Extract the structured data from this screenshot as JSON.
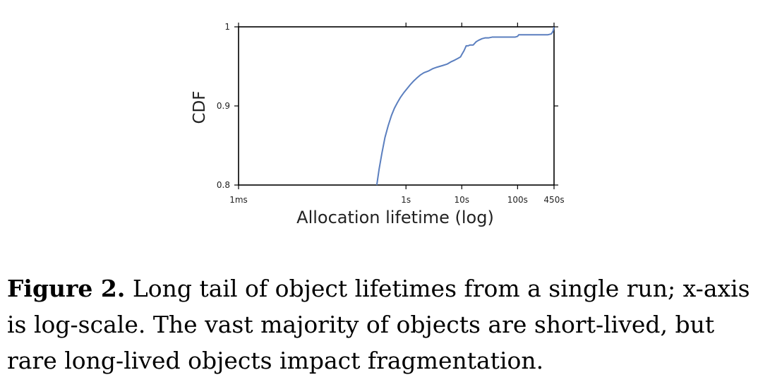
{
  "chart_data": {
    "type": "line",
    "xscale": "log",
    "xlabel": "Allocation lifetime (log)",
    "ylabel": "CDF",
    "xlim": [
      0.001,
      450
    ],
    "ylim": [
      0.8,
      1.0
    ],
    "xticks": [
      {
        "value": 0.001,
        "label": "1ms"
      },
      {
        "value": 1,
        "label": "1s"
      },
      {
        "value": 10,
        "label": "10s"
      },
      {
        "value": 100,
        "label": "100s"
      },
      {
        "value": 450,
        "label": "450s"
      }
    ],
    "yticks": [
      {
        "value": 0.8,
        "label": "0.8"
      },
      {
        "value": 0.9,
        "label": "0.9"
      },
      {
        "value": 1.0,
        "label": "1"
      }
    ],
    "series": [
      {
        "color": "#5b7fbf",
        "x": [
          0.3,
          0.33,
          0.37,
          0.42,
          0.48,
          0.55,
          0.62,
          0.7,
          0.8,
          0.92,
          1.05,
          1.2,
          1.35,
          1.55,
          1.8,
          2.1,
          2.5,
          3.0,
          3.6,
          4.5,
          5.5,
          6.5,
          7.5,
          8.5,
          9.5,
          10,
          11,
          12,
          13,
          14,
          15,
          16,
          18,
          20,
          23,
          26,
          30,
          35,
          40,
          50,
          60,
          75,
          90,
          100,
          105,
          130,
          160,
          200,
          250,
          300,
          350,
          400,
          420,
          435,
          445,
          450
        ],
        "y": [
          0.8,
          0.82,
          0.84,
          0.86,
          0.875,
          0.888,
          0.897,
          0.904,
          0.911,
          0.917,
          0.922,
          0.927,
          0.931,
          0.935,
          0.939,
          0.942,
          0.944,
          0.947,
          0.949,
          0.951,
          0.953,
          0.956,
          0.958,
          0.96,
          0.962,
          0.965,
          0.97,
          0.976,
          0.976,
          0.977,
          0.977,
          0.977,
          0.981,
          0.983,
          0.985,
          0.986,
          0.986,
          0.987,
          0.987,
          0.987,
          0.987,
          0.987,
          0.987,
          0.988,
          0.99,
          0.99,
          0.99,
          0.99,
          0.99,
          0.99,
          0.99,
          0.991,
          0.993,
          0.995,
          0.998,
          1.0
        ]
      }
    ],
    "grid": false
  },
  "caption": {
    "label": "Figure 2.",
    "text": " Long tail of object lifetimes from a single run; x-axis is log-scale. The vast majority of objects are short-lived, but rare long-lived objects impact fragmentation."
  }
}
